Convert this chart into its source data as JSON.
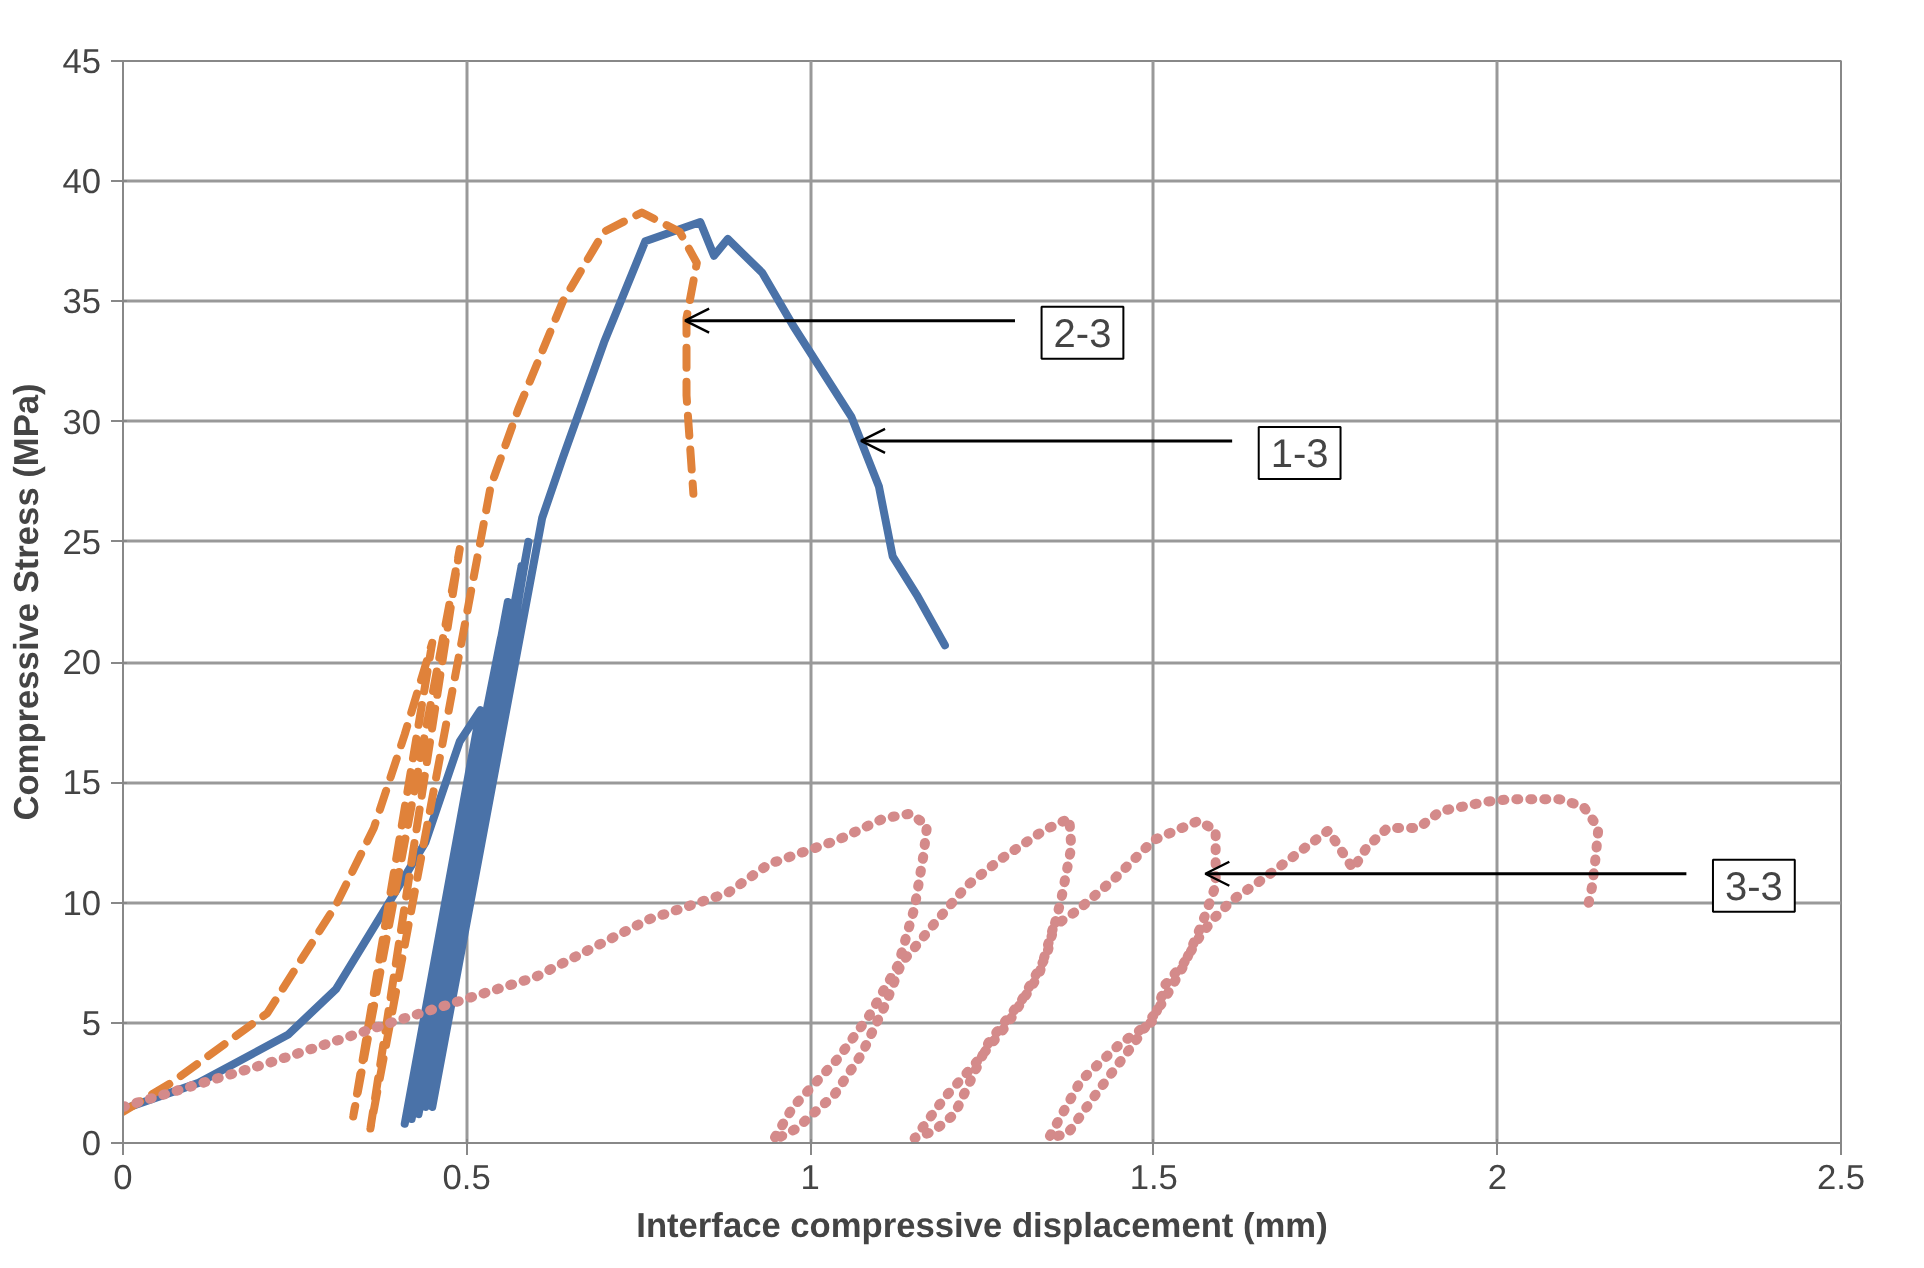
{
  "chart_data": {
    "type": "line",
    "xlabel": "Interface compressive displacement (mm)",
    "ylabel": "Compressive Stress (MPa)",
    "xlim": [
      0,
      2.5
    ],
    "xticks": [
      0,
      0.5,
      1,
      1.5,
      2,
      2.5
    ],
    "ylim": [
      0,
      45
    ],
    "yticks": [
      0,
      5,
      10,
      15,
      20,
      25,
      30,
      35,
      40,
      45
    ],
    "grid": true,
    "marker": "none",
    "series": [
      {
        "color": "#4a72a8",
        "line_style": "solid",
        "x": [
          0,
          0.11,
          0.24,
          0.31,
          0.385,
          0.44,
          0.49,
          0.52,
          0.41,
          0.55,
          0.42,
          0.56,
          0.43,
          0.58,
          0.44,
          0.59,
          0.45,
          0.61,
          0.64,
          0.7,
          0.76,
          0.84,
          0.86,
          0.88,
          0.93,
          0.975,
          1.06,
          1.1,
          1.12,
          1.155,
          1.196
        ],
        "values": [
          1.4,
          2.5,
          4.5,
          6.4,
          9.9,
          12.5,
          16.7,
          18,
          0.8,
          21,
          1,
          22.5,
          1.2,
          24,
          1.5,
          25,
          1.5,
          26,
          28.5,
          33.3,
          37.5,
          38.3,
          36.9,
          37.6,
          36.2,
          34,
          30.2,
          27.3,
          24.4,
          22.8,
          20.7
        ]
      },
      {
        "color": "#e0823a",
        "line_style": "dashed",
        "x": [
          0,
          0.07,
          0.21,
          0.31,
          0.365,
          0.41,
          0.45,
          0.335,
          0.49,
          0.36,
          0.535,
          0.575,
          0.64,
          0.7,
          0.755,
          0.81,
          0.835,
          0.82,
          0.82,
          0.83
        ],
        "values": [
          1.3,
          2.5,
          5.4,
          9.9,
          13.1,
          17,
          20.8,
          1.1,
          24.7,
          0.6,
          27.3,
          30.5,
          35,
          37.9,
          38.7,
          37.9,
          36.6,
          34.3,
          31.1,
          27
        ]
      },
      {
        "color": "#d48a8a",
        "line_style": "dotted",
        "x": [
          0,
          0.22,
          0.4,
          0.6,
          0.765,
          0.88,
          0.94,
          1.04,
          1.107,
          1.146,
          1.17,
          1.165,
          1.152,
          1.128,
          1.086,
          1.04,
          0.975,
          0.946,
          0.98,
          1.035,
          1.075,
          1.11,
          1.133,
          1.154,
          1.18,
          1.228,
          1.277,
          1.34,
          1.377,
          1.38,
          1.365,
          1.344,
          1.307,
          1.26,
          1.21,
          1.18,
          1.152,
          1.196,
          1.24,
          1.286,
          1.333,
          1.354,
          1.39,
          1.443,
          1.5,
          1.565,
          1.59,
          1.59,
          1.57,
          1.544,
          1.514,
          1.47,
          1.42,
          1.375,
          1.347,
          1.394,
          1.45,
          1.5,
          1.517,
          1.544,
          1.565,
          1.586,
          1.614,
          1.66,
          1.754,
          1.79,
          1.81,
          1.84,
          1.885,
          1.917,
          1.985,
          2.02,
          2.09,
          2.125,
          2.147,
          2.143,
          2.138,
          2.13
        ],
        "values": [
          1.5,
          3.4,
          5.1,
          6.9,
          9.3,
          10.4,
          11.6,
          12.6,
          13.5,
          13.7,
          13.2,
          12,
          9.8,
          7.4,
          5.3,
          3.5,
          1.5,
          0.1,
          0.6,
          2,
          3.7,
          5.8,
          7.5,
          8.2,
          9.1,
          10.7,
          11.8,
          13,
          13.5,
          12.3,
          10.1,
          7.8,
          5.9,
          4.2,
          1.2,
          0.5,
          0.2,
          1.9,
          3.3,
          4.9,
          7,
          9,
          9.7,
          11,
          12.6,
          13.4,
          13,
          10.7,
          9.1,
          7.4,
          5.9,
          4.1,
          2.2,
          0.4,
          0.2,
          2.6,
          4.1,
          5.1,
          6.6,
          7.5,
          8.5,
          9.3,
          10.1,
          11,
          13,
          11.4,
          12.3,
          13.1,
          13.1,
          13.8,
          14.2,
          14.3,
          14.3,
          14,
          13.1,
          11.9,
          10.7,
          9.6
        ]
      }
    ],
    "annotations": [
      {
        "text": "2-3",
        "x": 0.818,
        "y": 34.2
      },
      {
        "text": "1-3",
        "x": 1.074,
        "y": 29.2
      },
      {
        "text": "3-3",
        "x": 1.575,
        "y": 11.2
      }
    ]
  }
}
